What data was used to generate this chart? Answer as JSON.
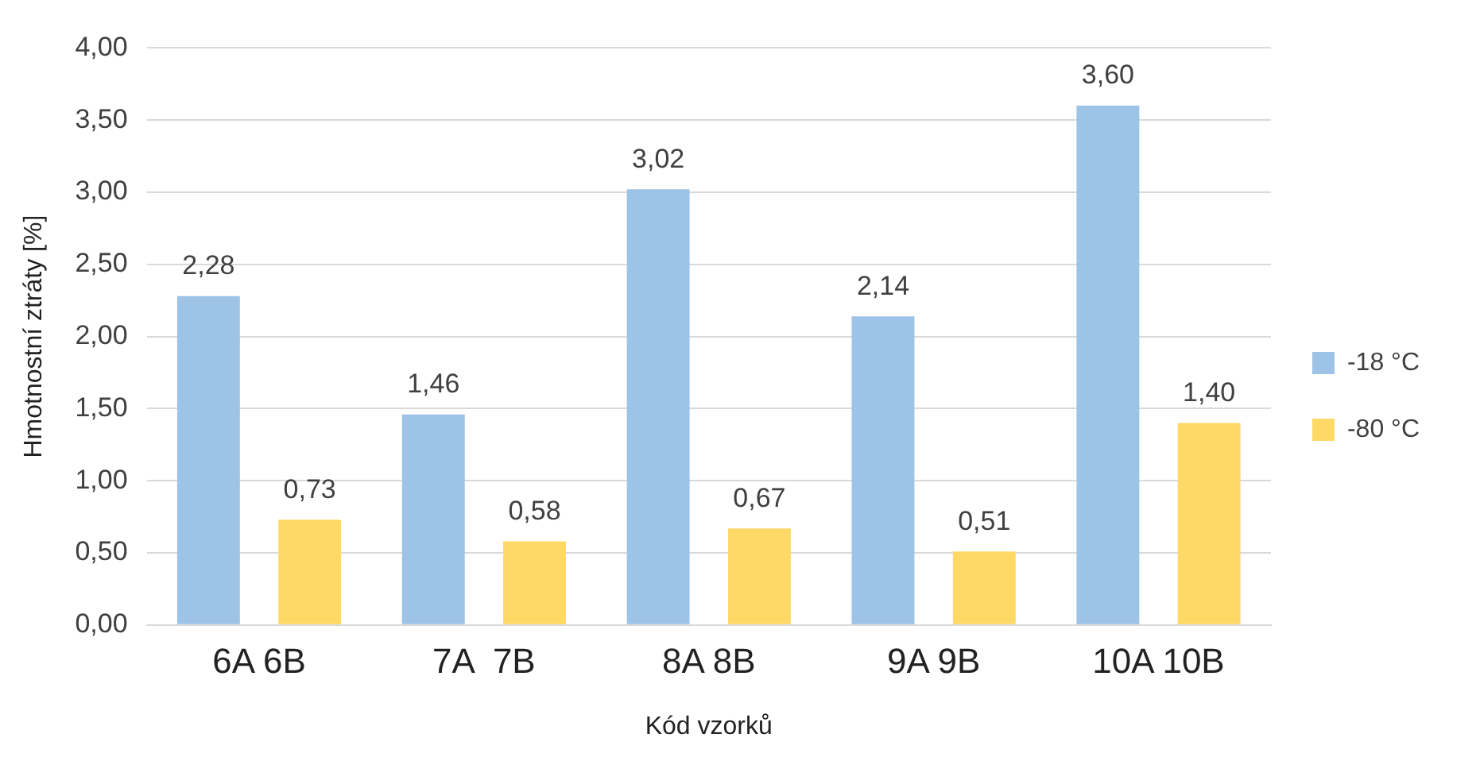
{
  "chart_data": {
    "type": "bar",
    "xlabel": "Kód vzorků",
    "ylabel": "Hmotnostní ztráty [%]",
    "categories": [
      "6A 6B",
      "7A  7B",
      "8A 8B",
      "9A 9B",
      "10A 10B"
    ],
    "series": [
      {
        "name": "-18 °C",
        "color": "#9dc3e6",
        "values": [
          2.28,
          1.46,
          3.02,
          2.14,
          3.6
        ],
        "value_labels": [
          "2,28",
          "1,46",
          "3,02",
          "2,14",
          "3,60"
        ]
      },
      {
        "name": "-80 °C",
        "color": "#ffd966",
        "values": [
          0.73,
          0.58,
          0.67,
          0.51,
          1.4
        ],
        "value_labels": [
          "0,73",
          "0,58",
          "0,67",
          "0,51",
          "1,40"
        ]
      }
    ],
    "ylim": [
      0,
      4
    ],
    "yticks": [
      {
        "value": 0,
        "label": "0,00"
      },
      {
        "value": 0.5,
        "label": "0,50"
      },
      {
        "value": 1,
        "label": "1,00"
      },
      {
        "value": 1.5,
        "label": "1,50"
      },
      {
        "value": 2,
        "label": "2,00"
      },
      {
        "value": 2.5,
        "label": "2,50"
      },
      {
        "value": 3,
        "label": "3,00"
      },
      {
        "value": 3.5,
        "label": "3,50"
      },
      {
        "value": 4,
        "label": "4,00"
      }
    ],
    "grid": "y",
    "legend": "right"
  }
}
